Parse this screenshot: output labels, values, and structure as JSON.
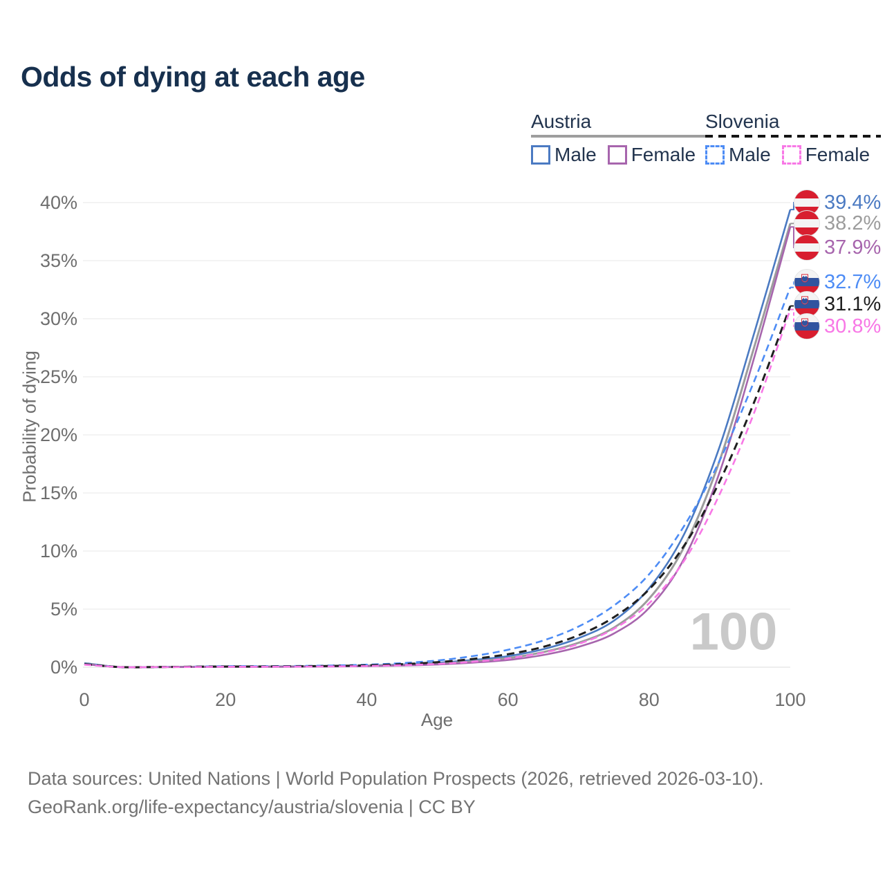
{
  "title": "Odds of dying at each age",
  "legend": {
    "groups": [
      {
        "country": "Austria",
        "line_style": "solid",
        "items": [
          {
            "label": "Male",
            "color": "#4b7ac2"
          },
          {
            "label": "Female",
            "color": "#a765ad"
          }
        ]
      },
      {
        "country": "Slovenia",
        "line_style": "dashed",
        "items": [
          {
            "label": "Male",
            "color": "#4d8cf5"
          },
          {
            "label": "Female",
            "color": "#f878e6"
          }
        ]
      }
    ]
  },
  "chart_data": {
    "type": "line",
    "title": "Odds of dying at each age",
    "xlabel": "Age",
    "ylabel": "Probability of dying",
    "xlim": [
      0,
      100
    ],
    "ylim": [
      0,
      40
    ],
    "grid": "horizontal",
    "age_cursor": "100",
    "x": [
      0,
      5,
      10,
      15,
      20,
      25,
      30,
      35,
      40,
      45,
      50,
      55,
      60,
      65,
      70,
      75,
      80,
      85,
      90,
      95,
      100
    ],
    "xticks": [
      {
        "value": 0,
        "label": "0"
      },
      {
        "value": 20,
        "label": "20"
      },
      {
        "value": 40,
        "label": "40"
      },
      {
        "value": 60,
        "label": "60"
      },
      {
        "value": 80,
        "label": "80"
      },
      {
        "value": 100,
        "label": "100"
      }
    ],
    "yticks": [
      {
        "value": 0,
        "label": "0%"
      },
      {
        "value": 5,
        "label": "5%"
      },
      {
        "value": 10,
        "label": "10%"
      },
      {
        "value": 15,
        "label": "15%"
      },
      {
        "value": 20,
        "label": "20%"
      },
      {
        "value": 25,
        "label": "25%"
      },
      {
        "value": 30,
        "label": "30%"
      },
      {
        "value": 35,
        "label": "35%"
      },
      {
        "value": 40,
        "label": "40%"
      }
    ],
    "series": [
      {
        "name": "Austria Male",
        "country": "Austria",
        "sex": "Male",
        "color": "#4b7ac2",
        "line_style": "solid",
        "flag": "austria",
        "end_label": "39.4%",
        "end_value": 39.4,
        "values": [
          0.36,
          0.01,
          0.01,
          0.04,
          0.07,
          0.07,
          0.08,
          0.11,
          0.15,
          0.23,
          0.38,
          0.62,
          0.95,
          1.55,
          2.5,
          4.0,
          6.8,
          11.5,
          19.0,
          29.0,
          39.4
        ]
      },
      {
        "name": "Austria Both sexes",
        "country": "Austria",
        "sex": "Both",
        "color": "#9c9c9c",
        "line_style": "solid",
        "flag": "austria",
        "end_label": "38.2%",
        "end_value": 38.2,
        "values": [
          0.31,
          0.01,
          0.01,
          0.03,
          0.05,
          0.05,
          0.06,
          0.09,
          0.12,
          0.18,
          0.3,
          0.5,
          0.78,
          1.3,
          2.1,
          3.4,
          5.9,
          10.4,
          17.8,
          27.8,
          38.2
        ]
      },
      {
        "name": "Austria Female",
        "country": "Austria",
        "sex": "Female",
        "color": "#a765ad",
        "line_style": "solid",
        "flag": "austria",
        "end_label": "37.9%",
        "end_value": 37.9,
        "values": [
          0.27,
          0.01,
          0.01,
          0.02,
          0.03,
          0.03,
          0.04,
          0.06,
          0.09,
          0.14,
          0.23,
          0.39,
          0.62,
          1.05,
          1.75,
          2.9,
          5.1,
          9.4,
          16.8,
          26.9,
          37.9
        ]
      },
      {
        "name": "Slovenia Male",
        "country": "Slovenia",
        "sex": "Male",
        "color": "#4d8cf5",
        "line_style": "dashed",
        "flag": "slovenia",
        "end_label": "32.7%",
        "end_value": 32.7,
        "values": [
          0.3,
          0.01,
          0.01,
          0.05,
          0.09,
          0.09,
          0.11,
          0.15,
          0.22,
          0.35,
          0.58,
          0.95,
          1.5,
          2.3,
          3.5,
          5.3,
          8.0,
          12.2,
          17.8,
          24.8,
          32.7
        ]
      },
      {
        "name": "Slovenia Both sexes",
        "country": "Slovenia",
        "sex": "Both",
        "color": "#1f1f1f",
        "line_style": "dashed",
        "flag": "slovenia",
        "end_label": "31.1%",
        "end_value": 31.1,
        "values": [
          0.26,
          0.01,
          0.01,
          0.04,
          0.06,
          0.06,
          0.08,
          0.11,
          0.16,
          0.26,
          0.43,
          0.71,
          1.12,
          1.75,
          2.75,
          4.3,
          6.7,
          10.5,
          16.0,
          23.0,
          31.1
        ]
      },
      {
        "name": "Slovenia Female",
        "country": "Slovenia",
        "sex": "Female",
        "color": "#f878e6",
        "line_style": "dashed",
        "flag": "slovenia",
        "end_label": "30.8%",
        "end_value": 30.8,
        "values": [
          0.22,
          0.01,
          0.01,
          0.02,
          0.04,
          0.04,
          0.05,
          0.07,
          0.1,
          0.17,
          0.28,
          0.47,
          0.75,
          1.25,
          2.0,
          3.3,
          5.5,
          9.2,
          14.9,
          22.1,
          30.8
        ]
      }
    ]
  },
  "footer": {
    "line1": "Data sources: United Nations | World Population Prospects (2026, retrieved 2026-03-10).",
    "line2": "GeoRank.org/life-expectancy/austria/slovenia | CC BY"
  }
}
